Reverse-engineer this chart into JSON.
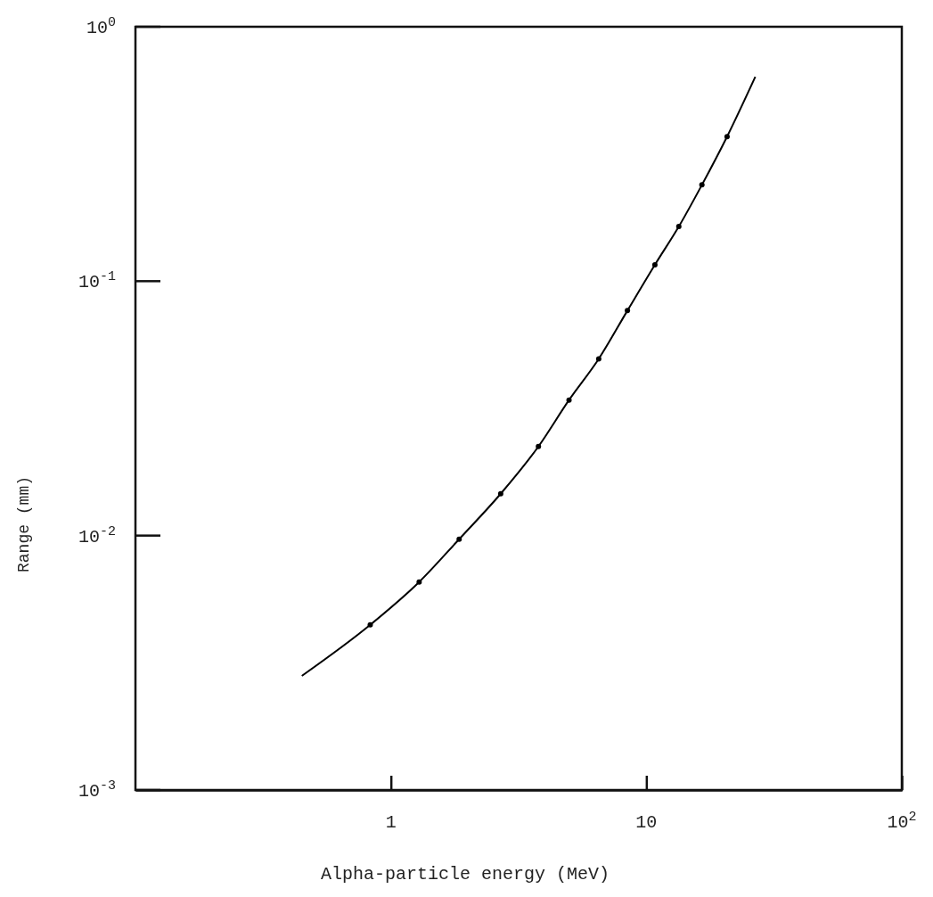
{
  "chart_data": {
    "type": "line",
    "xlabel": "Alpha-particle energy (MeV)",
    "ylabel": "Range (mm)",
    "log": "xy",
    "xlim": [
      0.1,
      100
    ],
    "ylim": [
      0.001,
      1
    ],
    "xticks": [
      1,
      10,
      {
        "value": 100,
        "label": "10$^{2}$"
      }
    ],
    "yticks": [
      {
        "value": 0.001,
        "label": "10$^{-3}$"
      },
      {
        "value": 0.01,
        "label": "10$^{-2}$"
      },
      {
        "value": 0.1,
        "label": "10$^{-1}$"
      },
      {
        "value": 1,
        "label": "10$^{0}$"
      }
    ],
    "grid": false,
    "series": [
      {
        "color": "#000000",
        "marker": "none",
        "x": [
          0.448,
          0.83,
          1.29,
          1.85,
          2.69,
          3.78,
          4.98,
          6.51,
          8.43,
          10.8,
          13.4,
          16.5,
          20.7,
          26.7
        ],
        "values": [
          0.00281,
          0.00446,
          0.00657,
          0.00968,
          0.0146,
          0.0224,
          0.0341,
          0.0495,
          0.0766,
          0.116,
          0.164,
          0.239,
          0.37,
          0.636
        ]
      },
      {
        "type": "scatter",
        "color": "#000000",
        "marker": "circle",
        "x": [
          0.83,
          1.29,
          1.85,
          2.69,
          3.78,
          4.98,
          6.51,
          8.43,
          10.8,
          13.4,
          16.5,
          20.7
        ],
        "values": [
          0.00446,
          0.00657,
          0.00968,
          0.0146,
          0.0224,
          0.0341,
          0.0495,
          0.0766,
          0.116,
          0.164,
          0.239,
          0.37
        ]
      }
    ]
  }
}
